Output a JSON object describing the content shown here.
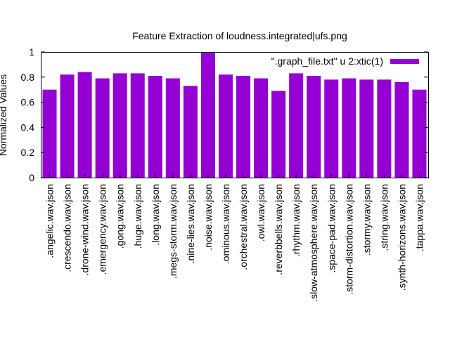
{
  "chart_data": {
    "type": "bar",
    "title": "Feature Extraction of loudness.integrated|ufs.png",
    "xlabel": "",
    "ylabel": "Normalized Values",
    "ylim": [
      0,
      1
    ],
    "yticks": [
      "0",
      "0.2",
      "0.4",
      "0.6",
      "0.8",
      "1"
    ],
    "grid": false,
    "legend": {
      "label": "\".graph_file.txt\" u 2:xtic(1)",
      "placement": "top-right"
    },
    "colors": {
      "bar": "#9400d3"
    },
    "categories": [
      ".angelic.wav.json",
      ".crescendo.wav.json",
      ".drone-wind.wav.json",
      ".emergency.wav.json",
      ".gong.wav.json",
      ".huge.wav.json",
      ".long.wav.json",
      ".megs-storm.wav.json",
      ".nine-lies.wav.json",
      ".noise.wav.json",
      ".ominous.wav.json",
      ".orchestral.wav.json",
      ".owl.wav.json",
      ".reverbbells.wav.json",
      ".rhythm.wav.json",
      ".slow-atmosphere.wav.json",
      ".space-pad.wav.json",
      ".storm-distortion.wav.json",
      ".stormy.wav.json",
      ".string.wav.json",
      ".synth-horizons.wav.json",
      ".tappa.wav.json"
    ],
    "series": [
      {
        "name": "\".graph_file.txt\" u 2:xtic(1)",
        "values": [
          0.7,
          0.82,
          0.84,
          0.79,
          0.83,
          0.83,
          0.81,
          0.79,
          0.73,
          1.0,
          0.82,
          0.81,
          0.79,
          0.69,
          0.83,
          0.81,
          0.78,
          0.79,
          0.78,
          0.78,
          0.76,
          0.7
        ]
      }
    ]
  }
}
